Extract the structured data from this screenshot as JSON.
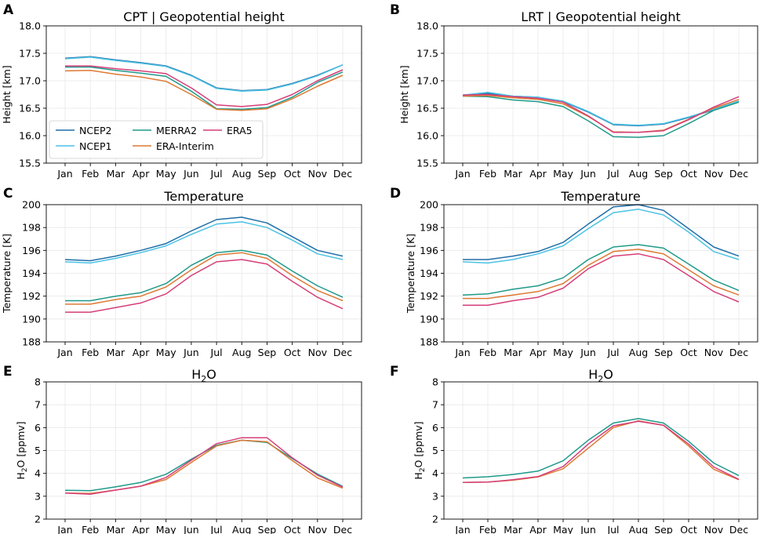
{
  "colors": {
    "NCEP2": "#1f6fa8",
    "NCEP1": "#4cc2e4",
    "MERRA2": "#1f9a8a",
    "ERA-Interim": "#de7a34",
    "ERA5": "#d63e78"
  },
  "legend": [
    "NCEP2",
    "NCEP1",
    "MERRA2",
    "ERA-Interim",
    "ERA5"
  ],
  "chart_data": [
    {
      "id": "A",
      "type": "line",
      "title": "CPT | Geopotential height",
      "xlabel": "",
      "ylabel": "Height [km]",
      "categories": [
        "Jan",
        "Feb",
        "Mar",
        "Apr",
        "May",
        "Jun",
        "Jul",
        "Aug",
        "Sep",
        "Oct",
        "Nov",
        "Dec"
      ],
      "ylim": [
        15.5,
        18.0
      ],
      "yticks": [
        "15.5",
        "16.0",
        "16.5",
        "17.0",
        "17.5",
        "18.0"
      ],
      "show_legend": true,
      "series": [
        {
          "name": "NCEP2",
          "values": [
            17.41,
            17.44,
            17.38,
            17.33,
            17.27,
            17.1,
            16.87,
            16.82,
            16.84,
            16.95,
            17.1,
            17.29
          ]
        },
        {
          "name": "NCEP1",
          "values": [
            17.4,
            17.43,
            17.37,
            17.32,
            17.26,
            17.09,
            16.86,
            16.81,
            16.83,
            16.94,
            17.09,
            17.29
          ]
        },
        {
          "name": "MERRA2",
          "values": [
            17.25,
            17.25,
            17.19,
            17.14,
            17.08,
            16.81,
            16.49,
            16.48,
            16.51,
            16.7,
            16.97,
            17.16
          ]
        },
        {
          "name": "ERA-Interim",
          "values": [
            17.18,
            17.19,
            17.12,
            17.07,
            16.99,
            16.75,
            16.48,
            16.46,
            16.49,
            16.67,
            16.9,
            17.1
          ]
        },
        {
          "name": "ERA5",
          "values": [
            17.27,
            17.27,
            17.22,
            17.18,
            17.13,
            16.87,
            16.56,
            16.53,
            16.57,
            16.75,
            17.0,
            17.2
          ]
        }
      ]
    },
    {
      "id": "B",
      "type": "line",
      "title": "LRT | Geopotential height",
      "xlabel": "",
      "ylabel": "Height [km]",
      "categories": [
        "Jan",
        "Feb",
        "Mar",
        "Apr",
        "May",
        "Jun",
        "Jul",
        "Aug",
        "Sep",
        "Oct",
        "Nov",
        "Dec"
      ],
      "ylim": [
        15.5,
        18.0
      ],
      "yticks": [
        "15.5",
        "16.0",
        "16.5",
        "17.0",
        "17.5",
        "18.0"
      ],
      "show_legend": false,
      "series": [
        {
          "name": "NCEP2",
          "values": [
            16.74,
            16.77,
            16.72,
            16.7,
            16.62,
            16.43,
            16.2,
            16.18,
            16.21,
            16.33,
            16.47,
            16.63
          ]
        },
        {
          "name": "NCEP1",
          "values": [
            16.74,
            16.79,
            16.72,
            16.7,
            16.63,
            16.44,
            16.21,
            16.19,
            16.22,
            16.34,
            16.48,
            16.63
          ]
        },
        {
          "name": "MERRA2",
          "values": [
            16.72,
            16.71,
            16.65,
            16.62,
            16.53,
            16.27,
            15.98,
            15.97,
            16.0,
            16.22,
            16.46,
            16.61
          ]
        },
        {
          "name": "ERA-Interim",
          "values": [
            16.72,
            16.73,
            16.69,
            16.66,
            16.58,
            16.35,
            16.07,
            16.06,
            16.1,
            16.3,
            16.5,
            16.66
          ]
        },
        {
          "name": "ERA5",
          "values": [
            16.74,
            16.75,
            16.71,
            16.68,
            16.61,
            16.36,
            16.06,
            16.06,
            16.09,
            16.29,
            16.52,
            16.71
          ]
        }
      ]
    },
    {
      "id": "C",
      "type": "line",
      "title": "Temperature",
      "xlabel": "",
      "ylabel": "Temperature [K]",
      "categories": [
        "Jan",
        "Feb",
        "Mar",
        "Apr",
        "May",
        "Jun",
        "Jul",
        "Aug",
        "Sep",
        "Oct",
        "Nov",
        "Dec"
      ],
      "ylim": [
        188,
        200
      ],
      "yticks": [
        "188",
        "190",
        "192",
        "194",
        "196",
        "198",
        "200"
      ],
      "show_legend": false,
      "series": [
        {
          "name": "NCEP2",
          "values": [
            195.2,
            195.1,
            195.5,
            196.0,
            196.6,
            197.7,
            198.7,
            198.9,
            198.4,
            197.2,
            196.0,
            195.5
          ]
        },
        {
          "name": "NCEP1",
          "values": [
            195.0,
            194.9,
            195.3,
            195.8,
            196.4,
            197.4,
            198.3,
            198.5,
            198.0,
            196.9,
            195.7,
            195.2
          ]
        },
        {
          "name": "MERRA2",
          "values": [
            191.6,
            191.6,
            192.0,
            192.3,
            193.1,
            194.7,
            195.8,
            196.0,
            195.6,
            194.2,
            192.9,
            191.9
          ]
        },
        {
          "name": "ERA-Interim",
          "values": [
            191.3,
            191.3,
            191.7,
            192.0,
            192.8,
            194.3,
            195.6,
            195.8,
            195.3,
            193.8,
            192.5,
            191.6
          ]
        },
        {
          "name": "ERA5",
          "values": [
            190.6,
            190.6,
            191.0,
            191.4,
            192.2,
            193.8,
            195.0,
            195.2,
            194.8,
            193.3,
            191.9,
            190.9
          ]
        }
      ]
    },
    {
      "id": "D",
      "type": "line",
      "title": "Temperature",
      "xlabel": "",
      "ylabel": "Temperature [K]",
      "categories": [
        "Jan",
        "Feb",
        "Mar",
        "Apr",
        "May",
        "Jun",
        "Jul",
        "Aug",
        "Sep",
        "Oct",
        "Nov",
        "Dec"
      ],
      "ylim": [
        188,
        200
      ],
      "yticks": [
        "188",
        "190",
        "192",
        "194",
        "196",
        "198",
        "200"
      ],
      "show_legend": false,
      "series": [
        {
          "name": "NCEP2",
          "values": [
            195.2,
            195.2,
            195.5,
            195.9,
            196.7,
            198.3,
            199.8,
            200.0,
            199.5,
            197.9,
            196.3,
            195.5
          ]
        },
        {
          "name": "NCEP1",
          "values": [
            195.0,
            194.9,
            195.2,
            195.7,
            196.4,
            197.9,
            199.3,
            199.6,
            199.1,
            197.6,
            195.9,
            195.2
          ]
        },
        {
          "name": "MERRA2",
          "values": [
            192.1,
            192.2,
            192.6,
            192.9,
            193.6,
            195.2,
            196.3,
            196.5,
            196.2,
            194.8,
            193.4,
            192.5
          ]
        },
        {
          "name": "ERA-Interim",
          "values": [
            191.8,
            191.8,
            192.1,
            192.4,
            193.1,
            194.7,
            195.9,
            196.1,
            195.7,
            194.3,
            192.9,
            192.1
          ]
        },
        {
          "name": "ERA5",
          "values": [
            191.2,
            191.2,
            191.6,
            191.9,
            192.7,
            194.4,
            195.5,
            195.7,
            195.2,
            193.8,
            192.4,
            191.5
          ]
        }
      ]
    },
    {
      "id": "E",
      "type": "line",
      "title": "H",
      "title_sub": "2",
      "title_tail": "O",
      "xlabel": "",
      "ylabel": "H",
      "ylabel_sub": "2",
      "ylabel_tail": "O [ppmv]",
      "categories": [
        "Jan",
        "Feb",
        "Mar",
        "Apr",
        "May",
        "Jun",
        "Jul",
        "Aug",
        "Sep",
        "Oct",
        "Nov",
        "Dec"
      ],
      "ylim": [
        2,
        8
      ],
      "yticks": [
        "2",
        "3",
        "4",
        "5",
        "6",
        "7",
        "8"
      ],
      "show_legend": false,
      "series": [
        {
          "name": "MERRA2",
          "values": [
            3.26,
            3.24,
            3.41,
            3.6,
            3.96,
            4.62,
            5.23,
            5.45,
            5.35,
            4.65,
            3.97,
            3.43
          ]
        },
        {
          "name": "ERA-Interim",
          "values": [
            3.14,
            3.12,
            3.27,
            3.44,
            3.73,
            4.48,
            5.2,
            5.45,
            5.38,
            4.56,
            3.8,
            3.35
          ]
        },
        {
          "name": "ERA5",
          "values": [
            3.14,
            3.09,
            3.27,
            3.44,
            3.82,
            4.57,
            5.3,
            5.56,
            5.56,
            4.68,
            3.92,
            3.4
          ]
        }
      ]
    },
    {
      "id": "F",
      "type": "line",
      "title": "H",
      "title_sub": "2",
      "title_tail": "O",
      "xlabel": "",
      "ylabel": "H",
      "ylabel_sub": "2",
      "ylabel_tail": "O [ppmv]",
      "categories": [
        "Jan",
        "Feb",
        "Mar",
        "Apr",
        "May",
        "Jun",
        "Jul",
        "Aug",
        "Sep",
        "Oct",
        "Nov",
        "Dec"
      ],
      "ylim": [
        2,
        8
      ],
      "yticks": [
        "2",
        "3",
        "4",
        "5",
        "6",
        "7",
        "8"
      ],
      "show_legend": false,
      "series": [
        {
          "name": "MERRA2",
          "values": [
            3.8,
            3.85,
            3.95,
            4.1,
            4.55,
            5.45,
            6.2,
            6.4,
            6.2,
            5.4,
            4.45,
            3.9
          ]
        },
        {
          "name": "ERA-Interim",
          "values": [
            3.6,
            3.62,
            3.7,
            3.84,
            4.2,
            5.1,
            6.0,
            6.3,
            6.1,
            5.2,
            4.18,
            3.72
          ]
        },
        {
          "name": "ERA5",
          "values": [
            3.6,
            3.62,
            3.72,
            3.86,
            4.3,
            5.28,
            6.08,
            6.28,
            6.1,
            5.28,
            4.28,
            3.74
          ]
        }
      ]
    }
  ]
}
